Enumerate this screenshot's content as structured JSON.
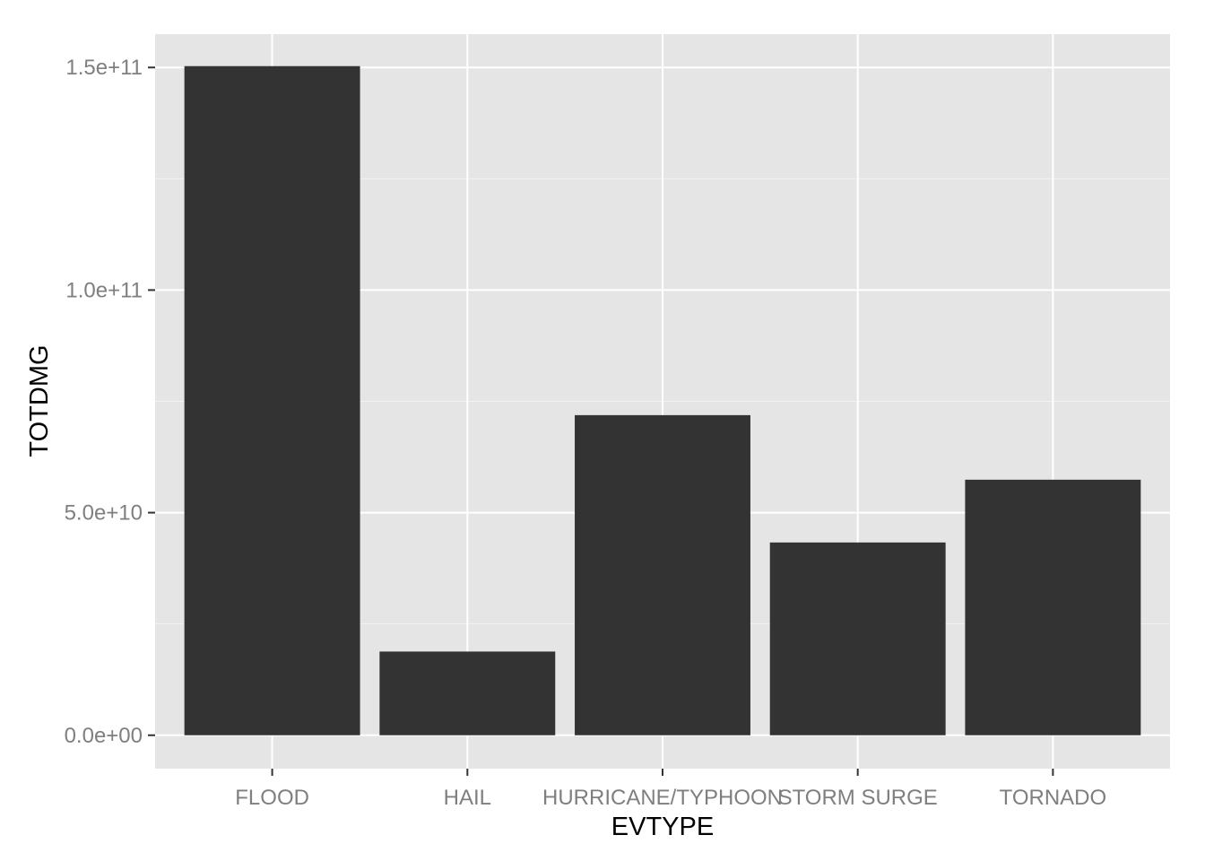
{
  "chart_data": {
    "type": "bar",
    "xlabel": "EVTYPE",
    "ylabel": "TOTDMG",
    "categories": [
      "FLOOD",
      "HAIL",
      "HURRICANE/TYPHOON",
      "STORM SURGE",
      "TORNADO"
    ],
    "values": [
      150300000000,
      18800000000,
      71900000000,
      43300000000,
      57400000000
    ],
    "ylim": [
      -7500000000,
      157500000000
    ],
    "yticks": [
      0,
      50000000000,
      100000000000,
      150000000000
    ],
    "ytick_labels": [
      "0.0e+00",
      "5.0e+10",
      "1.0e+11",
      "1.5e+11"
    ],
    "grid": true,
    "legend": "none"
  },
  "colors": {
    "panel_background": "#e5e5e5",
    "grid_major": "#ffffff",
    "bar_fill": "#333333",
    "tick_text": "#7f7f7f",
    "axis_title": "#000000"
  }
}
